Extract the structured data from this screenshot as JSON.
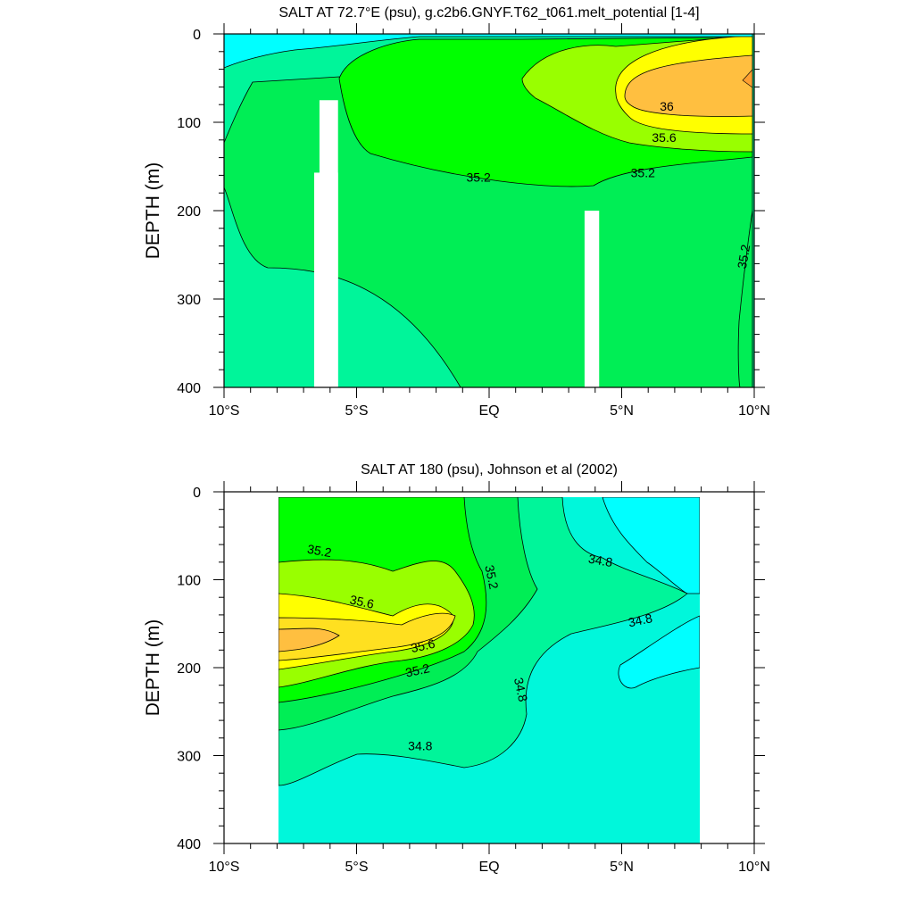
{
  "chart_data": [
    {
      "type": "contour",
      "title": "SALT AT  72.7°E (psu), g.c2b6.GNYF.T62_t061.melt_potential [1-4]",
      "ylabel": "DEPTH (m)",
      "xlabel": "",
      "xlim": [
        -10,
        10
      ],
      "ylim": [
        0,
        400
      ],
      "y_inverted": true,
      "xticks": [
        {
          "value": -10,
          "label": "10°S"
        },
        {
          "value": -5,
          "label": "5°S"
        },
        {
          "value": 0,
          "label": "EQ"
        },
        {
          "value": 5,
          "label": "5°N"
        },
        {
          "value": 10,
          "label": "10°N"
        }
      ],
      "yticks": [
        {
          "value": 0,
          "label": "0"
        },
        {
          "value": 100,
          "label": "100"
        },
        {
          "value": 200,
          "label": "200"
        },
        {
          "value": 300,
          "label": "300"
        },
        {
          "value": 400,
          "label": "400"
        }
      ],
      "levels_psu": {
        "min": 34.6,
        "max": 36.2,
        "interval": 0.2
      },
      "colors": {
        "lt34.6": "#00ffff",
        "34.6-34.8": "#00f7db",
        "34.8-35.0": "#00f59a",
        "35.0-35.2": "#00ee55",
        "35.2-35.4": "#00ff00",
        "35.4-35.6": "#99ff00",
        "35.6-35.8": "#d9ff00",
        "35.8-36.0": "#ffff00",
        "36.0-36.2": "#ffe020",
        "gt36.2": "#ffbf40"
      },
      "missing_data": [
        {
          "x": [
            -6.4,
            -5.7
          ],
          "depth": [
            75,
            400
          ]
        },
        {
          "x": [
            -6.6,
            -5.7
          ],
          "depth": [
            157,
            400
          ]
        },
        {
          "x": [
            3.6,
            4.15
          ],
          "depth": [
            200,
            400
          ]
        }
      ],
      "contour_labels": [
        {
          "text": "36",
          "x": 6.7,
          "depth": 82
        },
        {
          "text": "35.6",
          "x": 6.6,
          "depth": 117
        },
        {
          "text": "35.2",
          "x": -0.4,
          "depth": 162
        },
        {
          "text": "35.2",
          "x": 5.8,
          "depth": 157
        },
        {
          "text": "35.2",
          "x": 9.6,
          "depth": 252
        }
      ]
    },
    {
      "type": "contour",
      "title": "SALT AT 180 (psu), Johnson et al (2002)",
      "ylabel": "DEPTH (m)",
      "xlabel": "",
      "xlim": [
        -10,
        10
      ],
      "ylim": [
        0,
        400
      ],
      "y_inverted": true,
      "data_xrange": [
        -8,
        8
      ],
      "xticks": [
        {
          "value": -10,
          "label": "10°S"
        },
        {
          "value": -5,
          "label": "5°S"
        },
        {
          "value": 0,
          "label": "EQ"
        },
        {
          "value": 5,
          "label": "5°N"
        },
        {
          "value": 10,
          "label": "10°N"
        }
      ],
      "yticks": [
        {
          "value": 0,
          "label": "0"
        },
        {
          "value": 100,
          "label": "100"
        },
        {
          "value": 200,
          "label": "200"
        },
        {
          "value": 300,
          "label": "300"
        },
        {
          "value": 400,
          "label": "400"
        }
      ],
      "contour_labels": [
        {
          "text": "35.2",
          "x": -6.4,
          "depth": 67
        },
        {
          "text": "35.2",
          "x": 0.1,
          "depth": 97
        },
        {
          "text": "34.8",
          "x": 4.2,
          "depth": 78
        },
        {
          "text": "35.6",
          "x": -4.8,
          "depth": 125
        },
        {
          "text": "34.8",
          "x": 5.7,
          "depth": 146
        },
        {
          "text": "35.6",
          "x": -2.5,
          "depth": 175
        },
        {
          "text": "35.2",
          "x": -2.7,
          "depth": 203
        },
        {
          "text": "34.8",
          "x": 1.2,
          "depth": 225
        },
        {
          "text": "34.8",
          "x": -2.6,
          "depth": 289
        }
      ]
    }
  ]
}
